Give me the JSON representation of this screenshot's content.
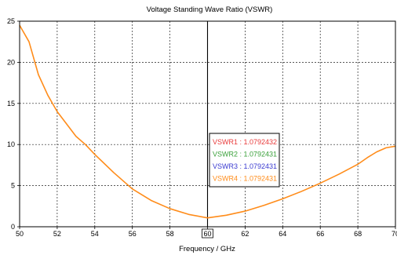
{
  "chart_data": {
    "type": "line",
    "title": "Voltage Standing Wave Ratio (VSWR)",
    "xlabel": "Frequency / GHz",
    "ylabel": "",
    "xlim": [
      50,
      70
    ],
    "ylim": [
      0,
      25
    ],
    "x_ticks": [
      50,
      52,
      54,
      56,
      58,
      60,
      62,
      64,
      66,
      68,
      70
    ],
    "y_ticks": [
      0,
      5,
      10,
      15,
      20,
      25
    ],
    "grid": true,
    "highlighted_x_tick": 60,
    "marker": {
      "x": 60
    },
    "series": [
      {
        "color": "#ff8c1a",
        "x": [
          50,
          50.5,
          51,
          51.5,
          52,
          52.5,
          53,
          53.5,
          54,
          55,
          56,
          57,
          58,
          59,
          60,
          61,
          62,
          63,
          64,
          65,
          66,
          67,
          68,
          68.5,
          69,
          69.5,
          70
        ],
        "y": [
          24.5,
          22.5,
          18.5,
          16,
          14,
          12.5,
          11,
          10,
          8.8,
          6.6,
          4.6,
          3.2,
          2.2,
          1.5,
          1.08,
          1.4,
          1.9,
          2.6,
          3.4,
          4.3,
          5.3,
          6.4,
          7.6,
          8.4,
          9.1,
          9.6,
          9.8
        ]
      }
    ],
    "legend": {
      "placement": "center-right",
      "entries": [
        {
          "text": "VSWR1 : 1.0792432",
          "color": "#e83a3a"
        },
        {
          "text": "VSWR2 : 1.0792431",
          "color": "#3aa03a"
        },
        {
          "text": "VSWR3 : 1.0792431",
          "color": "#3a3ad0"
        },
        {
          "text": "VSWR4 : 1.0792431",
          "color": "#ff8c1a"
        }
      ]
    }
  }
}
